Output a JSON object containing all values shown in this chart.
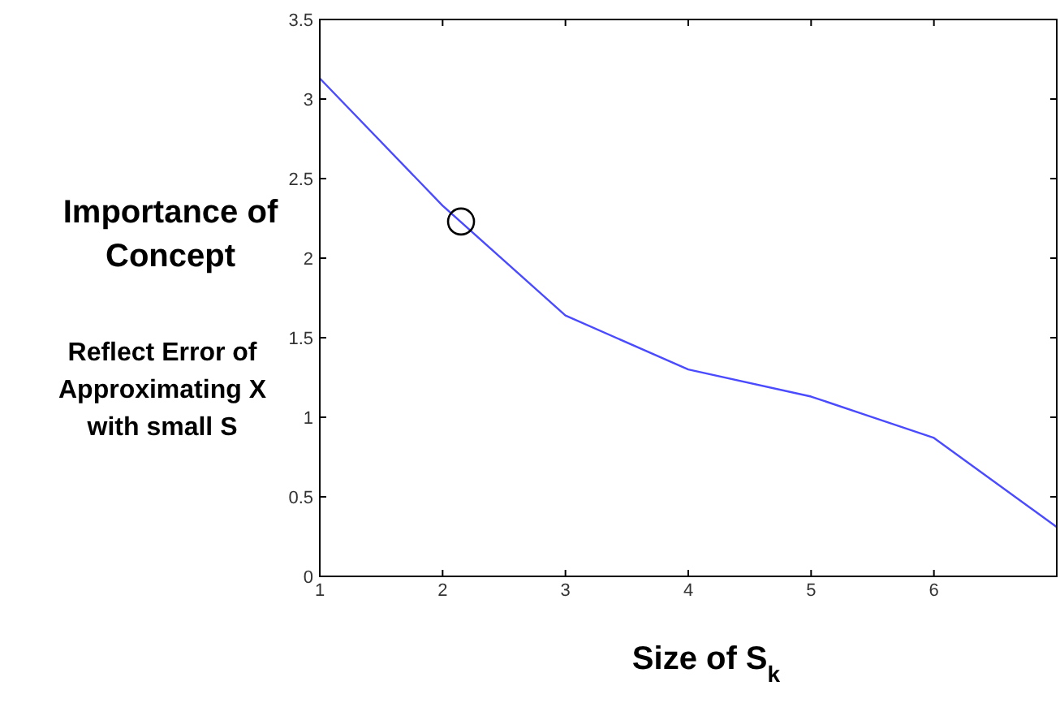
{
  "chart_data": {
    "type": "line",
    "ylabel": "Importance of Concept",
    "xlabel": "Size of S$_{k}$",
    "annotations": [
      "Reflect Error of Approximating X with small S"
    ],
    "xlim": [
      1,
      7
    ],
    "xticks": [
      1,
      2,
      3,
      4,
      5,
      6
    ],
    "ylim": [
      0,
      3.5
    ],
    "yticks": [
      0,
      0.5,
      1,
      1.5,
      2,
      2.5,
      3,
      3.5
    ],
    "grid": false,
    "series": [
      {
        "color": "#4a4aff",
        "x": [
          1,
          2,
          3,
          4,
          5,
          6,
          7
        ],
        "values": [
          3.13,
          2.33,
          1.64,
          1.3,
          1.13,
          0.87,
          0.31
        ],
        "marker": "none"
      },
      {
        "type": "scatter",
        "color": "#000000",
        "x": [
          2.15
        ],
        "values": [
          2.23
        ],
        "marker": "circle"
      }
    ]
  }
}
